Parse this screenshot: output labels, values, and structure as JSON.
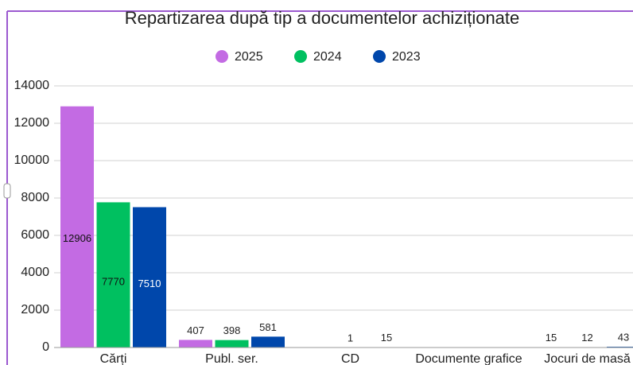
{
  "chart_data": {
    "type": "bar",
    "title": "Repartizarea după tip a documentelor achiziționate",
    "categories": [
      "Cărți",
      "Publ. ser.",
      "CD",
      "Documente grafice",
      "Jocuri de masă"
    ],
    "series": [
      {
        "name": "2025",
        "color": "#c36be3",
        "values": [
          12906,
          407,
          null,
          null,
          15
        ]
      },
      {
        "name": "2024",
        "color": "#00c060",
        "values": [
          7770,
          398,
          1,
          null,
          12
        ]
      },
      {
        "name": "2023",
        "color": "#0047ab",
        "values": [
          7510,
          581,
          15,
          null,
          43
        ]
      }
    ],
    "ylim": [
      0,
      14000
    ],
    "yticks": [
      0,
      2000,
      4000,
      6000,
      8000,
      10000,
      12000,
      14000
    ],
    "grid": true,
    "legend": "top"
  }
}
